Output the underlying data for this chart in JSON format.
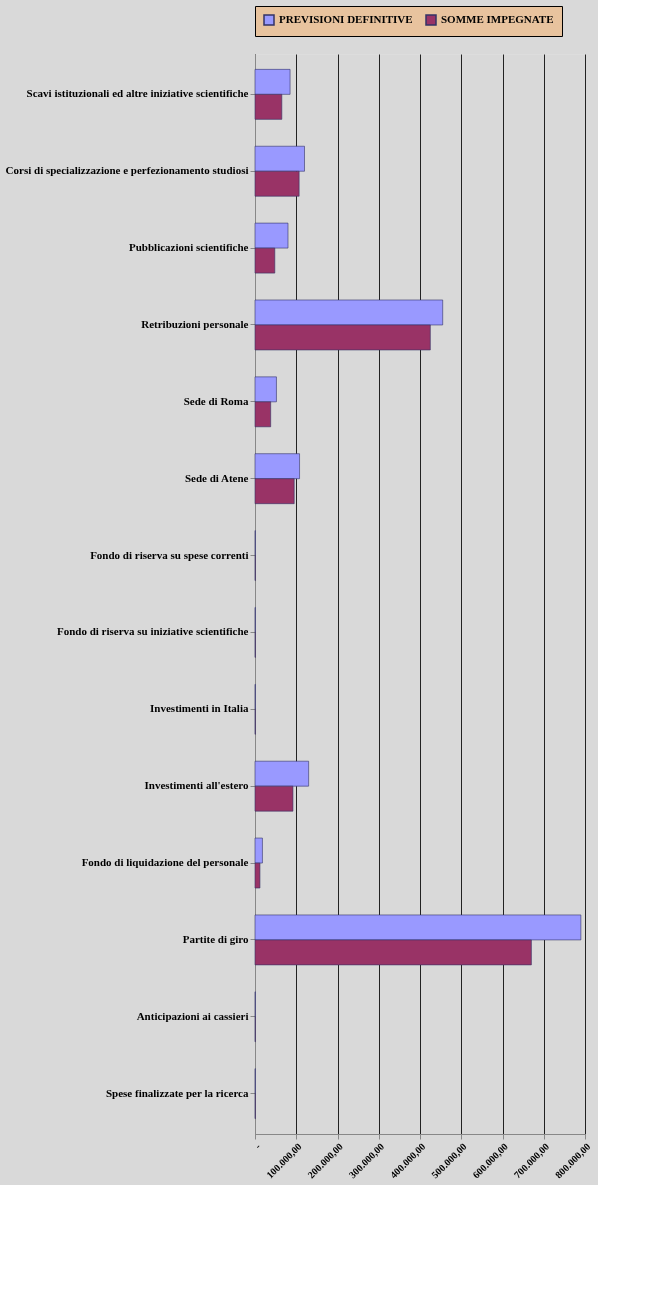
{
  "chart_data": {
    "type": "bar",
    "orientation": "horizontal",
    "categories": [
      "Scavi istituzionali ed altre iniziative scientifiche",
      "Corsi di specializzazione e perfezionamento studiosi",
      "Pubblicazioni scientifiche",
      "Retribuzioni personale",
      "Sede di Roma",
      "Sede di Atene",
      "Fondo di riserva su spese correnti",
      "Fondo di riserva su iniziative scientifiche",
      "Investimenti in Italia",
      "Investimenti all'estero",
      "Fondo di liquidazione del personale",
      "Partite di giro",
      "Anticipazioni ai cassieri",
      "Spese finalizzate per la ricerca"
    ],
    "series": [
      {
        "name": "PREVISIONI DEFINITIVE",
        "color": "#9999ff",
        "values": [
          85000,
          120000,
          80000,
          455000,
          52000,
          108000,
          1000,
          1000,
          1000,
          130000,
          18000,
          790000,
          1000,
          1000
        ]
      },
      {
        "name": "SOMME IMPEGNATE",
        "color": "#993366",
        "values": [
          65000,
          107000,
          48000,
          425000,
          38000,
          95000,
          1000,
          1000,
          1000,
          92000,
          12000,
          670000,
          1000,
          1000
        ]
      }
    ],
    "xlim": [
      0,
      800000
    ],
    "xticks": [
      {
        "value": 0,
        "label": "-"
      },
      {
        "value": 100000,
        "label": "100.000,00"
      },
      {
        "value": 200000,
        "label": "200.000,00"
      },
      {
        "value": 300000,
        "label": "300.000,00"
      },
      {
        "value": 400000,
        "label": "400.000,00"
      },
      {
        "value": 500000,
        "label": "500.000,00"
      },
      {
        "value": 600000,
        "label": "600.000,00"
      },
      {
        "value": 700000,
        "label": "700.000,00"
      },
      {
        "value": 800000,
        "label": "800.000,00"
      }
    ],
    "grid": "x",
    "legend": "top"
  }
}
